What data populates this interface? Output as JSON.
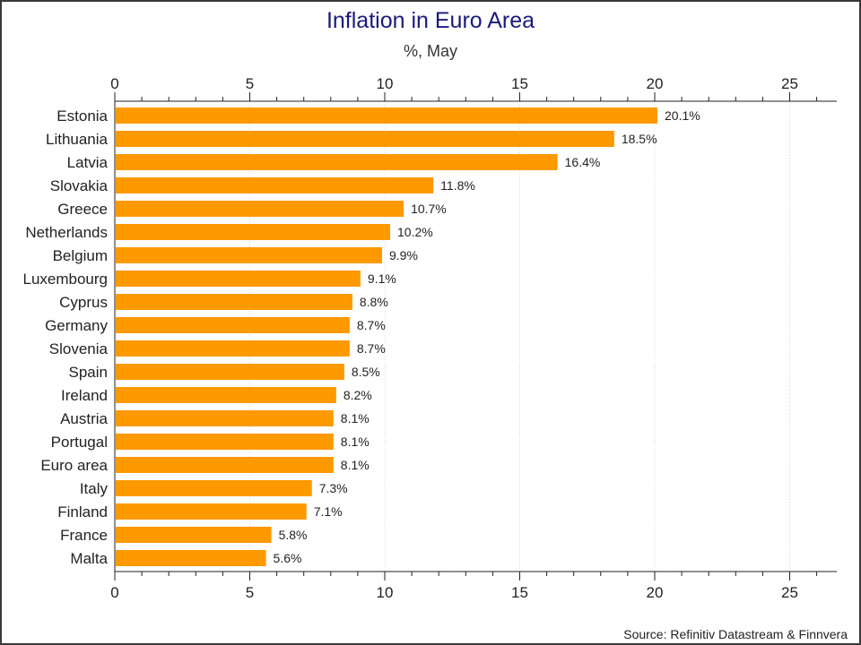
{
  "chart_data": {
    "type": "bar",
    "orientation": "horizontal",
    "title": "Inflation in Euro Area",
    "subtitle": "%, May",
    "xlabel": "",
    "ylabel": "",
    "xlim": [
      0,
      26.8
    ],
    "x_ticks": [
      0,
      5,
      10,
      15,
      20,
      25
    ],
    "grid": "vertical dotted",
    "bar_color": "#ff9900",
    "categories": [
      "Estonia",
      "Lithuania",
      "Latvia",
      "Slovakia",
      "Greece",
      "Netherlands",
      "Belgium",
      "Luxembourg",
      "Cyprus",
      "Germany",
      "Slovenia",
      "Spain",
      "Ireland",
      "Austria",
      "Portugal",
      "Euro area",
      "Italy",
      "Finland",
      "France",
      "Malta"
    ],
    "values": [
      20.1,
      18.5,
      16.4,
      11.8,
      10.7,
      10.2,
      9.9,
      9.1,
      8.8,
      8.7,
      8.7,
      8.5,
      8.2,
      8.1,
      8.1,
      8.1,
      7.3,
      7.1,
      5.8,
      5.6
    ],
    "data_labels": [
      "20.1%",
      "18.5%",
      "16.4%",
      "11.8%",
      "10.7%",
      "10.2%",
      "9.9%",
      "9.1%",
      "8.8%",
      "8.7%",
      "8.7%",
      "8.5%",
      "8.2%",
      "8.1%",
      "8.1%",
      "8.1%",
      "7.3%",
      "7.1%",
      "5.8%",
      "5.6%"
    ],
    "source": "Source: Refinitiv Datastream & Finnvera"
  }
}
